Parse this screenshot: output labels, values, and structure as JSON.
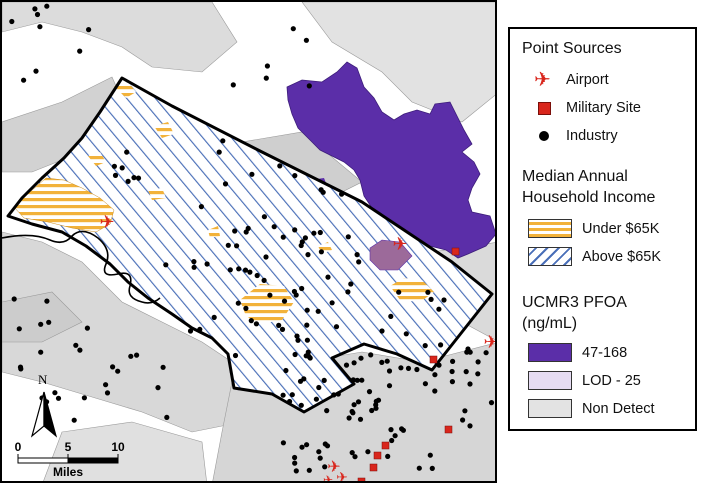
{
  "colors": {
    "high_pfoa": "#5b2ea8",
    "low_pfoa": "#e6dcf3",
    "non_detect": "#d9d9d9",
    "under_income": "#f2b23a",
    "above_income": "#4a6fb8",
    "airport": "#d9261c",
    "military": "#d9261c",
    "industry": "#000000"
  },
  "legend": {
    "point_sources": {
      "title": "Point Sources",
      "items": [
        {
          "label": "Airport",
          "icon": "airplane-icon"
        },
        {
          "label": "Military Site",
          "icon": "square-icon"
        },
        {
          "label": "Industry",
          "icon": "dot-icon"
        }
      ]
    },
    "income": {
      "title_line1": "Median Annual",
      "title_line2": "Household Income",
      "items": [
        {
          "label": "Under $65K"
        },
        {
          "label": "Above $65K"
        }
      ]
    },
    "pfoa": {
      "title_line1": "UCMR3 PFOA",
      "title_line2": "(ng/mL)",
      "items": [
        {
          "label": "47-168"
        },
        {
          "label": "LOD - 25"
        },
        {
          "label": "Non Detect"
        }
      ]
    }
  },
  "north_arrow": {
    "label": "N"
  },
  "scale_bar": {
    "ticks": [
      "0",
      "5",
      "10"
    ],
    "unit": "Miles"
  }
}
